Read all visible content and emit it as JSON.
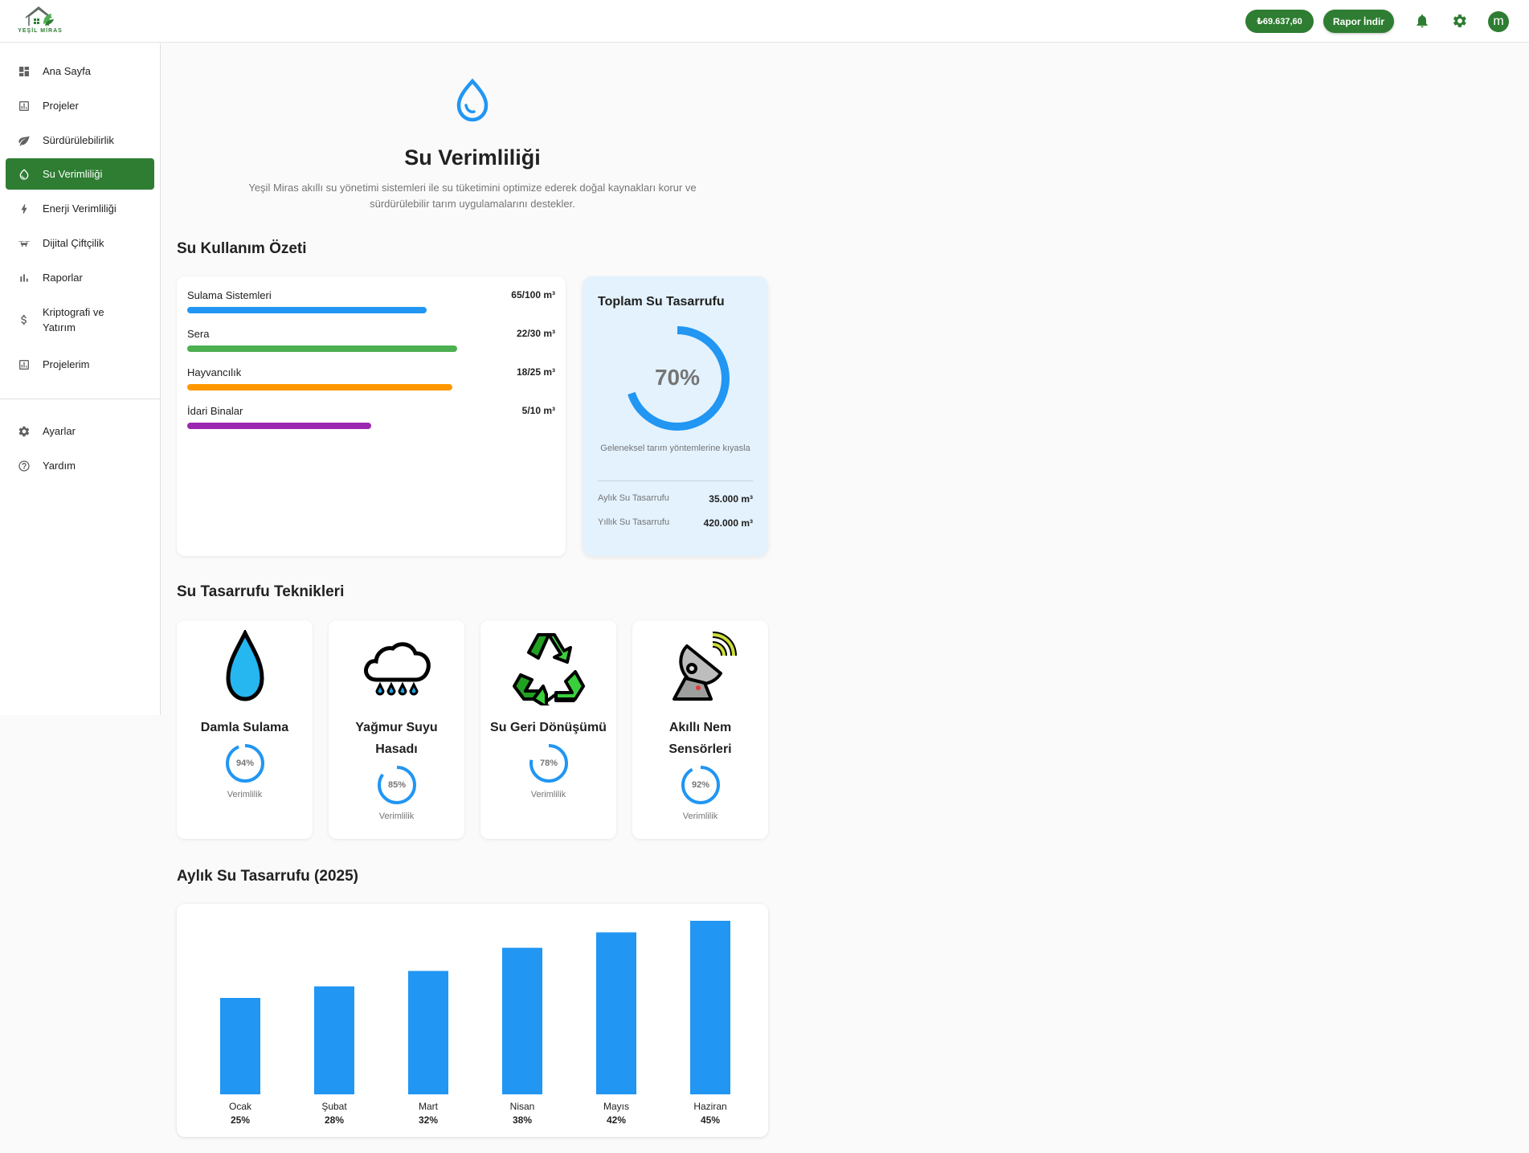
{
  "header": {
    "logo_text": "YEŞİL MİRAS",
    "balance": "₺69.637,60",
    "report_button": "Rapor İndir",
    "avatar_letter": "m"
  },
  "sidebar": {
    "items": [
      {
        "label": "Ana Sayfa",
        "icon": "dashboard-icon"
      },
      {
        "label": "Projeler",
        "icon": "chart-box-icon"
      },
      {
        "label": "Sürdürülebilirlik",
        "icon": "leaf-icon"
      },
      {
        "label": "Su Verimliliği",
        "icon": "water-drop-icon",
        "active": true
      },
      {
        "label": "Enerji Verimliliği",
        "icon": "bolt-icon"
      },
      {
        "label": "Dijital Çiftçilik",
        "icon": "drone-icon"
      },
      {
        "label": "Raporlar",
        "icon": "bar-chart-icon"
      },
      {
        "label": "Kriptografi ve Yatırım",
        "icon": "dollar-icon"
      },
      {
        "label": "Projelerim",
        "icon": "chart-box-icon"
      }
    ],
    "bottom_items": [
      {
        "label": "Ayarlar",
        "icon": "gear-icon"
      },
      {
        "label": "Yardım",
        "icon": "help-circle-icon"
      }
    ]
  },
  "page": {
    "title": "Su Verimliliği",
    "description": "Yeşil Miras akıllı su yönetimi sistemleri ile su tüketimini optimize ederek doğal kaynakları korur ve sürdürülebilir tarım uygulamalarını destekler."
  },
  "usage": {
    "section_title": "Su Kullanım Özeti",
    "rows": [
      {
        "label": "Sulama Sistemleri",
        "value": "65/100 m³",
        "fraction": 0.65,
        "color": "#2196f3"
      },
      {
        "label": "Sera",
        "value": "22/30 m³",
        "fraction": 0.733,
        "color": "#4caf50"
      },
      {
        "label": "Hayvancılık",
        "value": "18/25 m³",
        "fraction": 0.72,
        "color": "#ff9800"
      },
      {
        "label": "İdari Binalar",
        "value": "5/10 m³",
        "fraction": 0.5,
        "color": "#9c27b0"
      }
    ]
  },
  "savings": {
    "title": "Toplam Su Tasarrufu",
    "percent_text": "70%",
    "percent": 70,
    "note": "Geleneksel tarım yöntemlerine kıyasla",
    "monthly_label": "Aylık Su Tasarrufu",
    "monthly_value": "35.000 m³",
    "yearly_label": "Yıllık Su Tasarrufu",
    "yearly_value": "420.000 m³",
    "color": "#2196f3"
  },
  "techniques": {
    "section_title": "Su Tasarrufu Teknikleri",
    "items": [
      {
        "name": "Damla Sulama",
        "percent_text": "94%",
        "percent": 94,
        "sub": "Verimlilik",
        "icon": "water-drop-icon"
      },
      {
        "name": "Yağmur Suyu Hasadı",
        "percent_text": "85%",
        "percent": 85,
        "sub": "Verimlilik",
        "icon": "rain-cloud-icon"
      },
      {
        "name": "Su Geri Dönüşümü",
        "percent_text": "78%",
        "percent": 78,
        "sub": "Verimlilik",
        "icon": "recycle-icon"
      },
      {
        "name": "Akıllı Nem Sensörleri",
        "percent_text": "92%",
        "percent": 92,
        "sub": "Verimlilik",
        "icon": "satellite-dish-icon"
      }
    ]
  },
  "monthly": {
    "section_title": "Aylık Su Tasarrufu (2025)"
  },
  "chart_data": {
    "type": "bar",
    "categories": [
      "Ocak",
      "Şubat",
      "Mart",
      "Nisan",
      "Mayıs",
      "Haziran"
    ],
    "values": [
      25,
      28,
      32,
      38,
      42,
      45
    ],
    "value_labels": [
      "25%",
      "28%",
      "32%",
      "38%",
      "42%",
      "45%"
    ],
    "title": "Aylık Su Tasarrufu (2025)",
    "xlabel": "",
    "ylabel": "",
    "ylim": [
      0,
      50
    ],
    "grid": false,
    "color": "#2196f3"
  }
}
